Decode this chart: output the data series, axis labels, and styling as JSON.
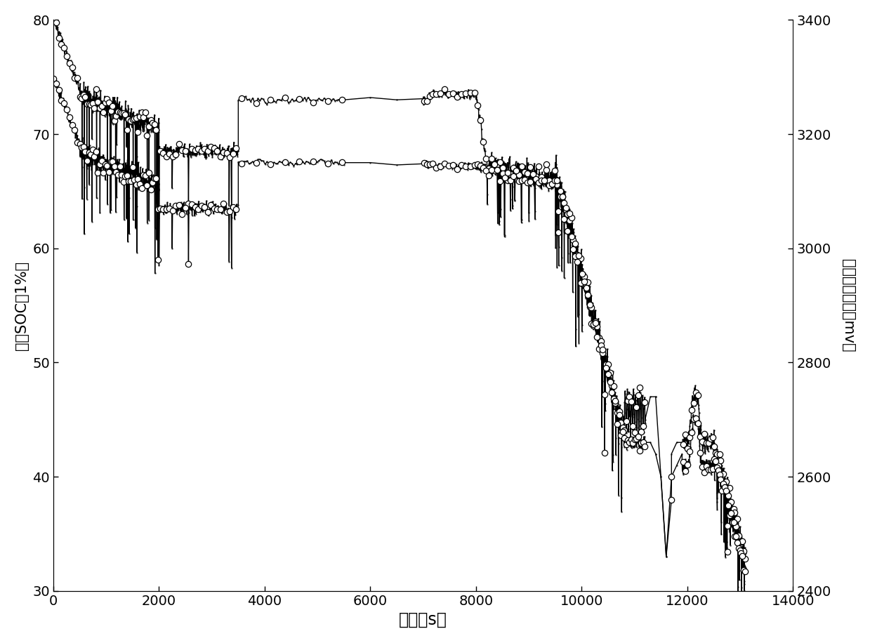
{
  "xlabel": "时间（s）",
  "ylabel_left": "真实SOC（1%）",
  "ylabel_right": "最小单体电压（mv）",
  "xlim": [
    0,
    14000
  ],
  "ylim_left": [
    30,
    80
  ],
  "ylim_right": [
    2400,
    3400
  ],
  "xticks": [
    0,
    2000,
    4000,
    6000,
    8000,
    10000,
    12000,
    14000
  ],
  "yticks_left": [
    30,
    40,
    50,
    60,
    70,
    80
  ],
  "yticks_right": [
    2400,
    2600,
    2800,
    3000,
    3200,
    3400
  ],
  "bg_color": "#ffffff",
  "line_color": "#000000",
  "soc_scale": [
    30,
    80
  ],
  "volt_scale": [
    2400,
    3400
  ]
}
